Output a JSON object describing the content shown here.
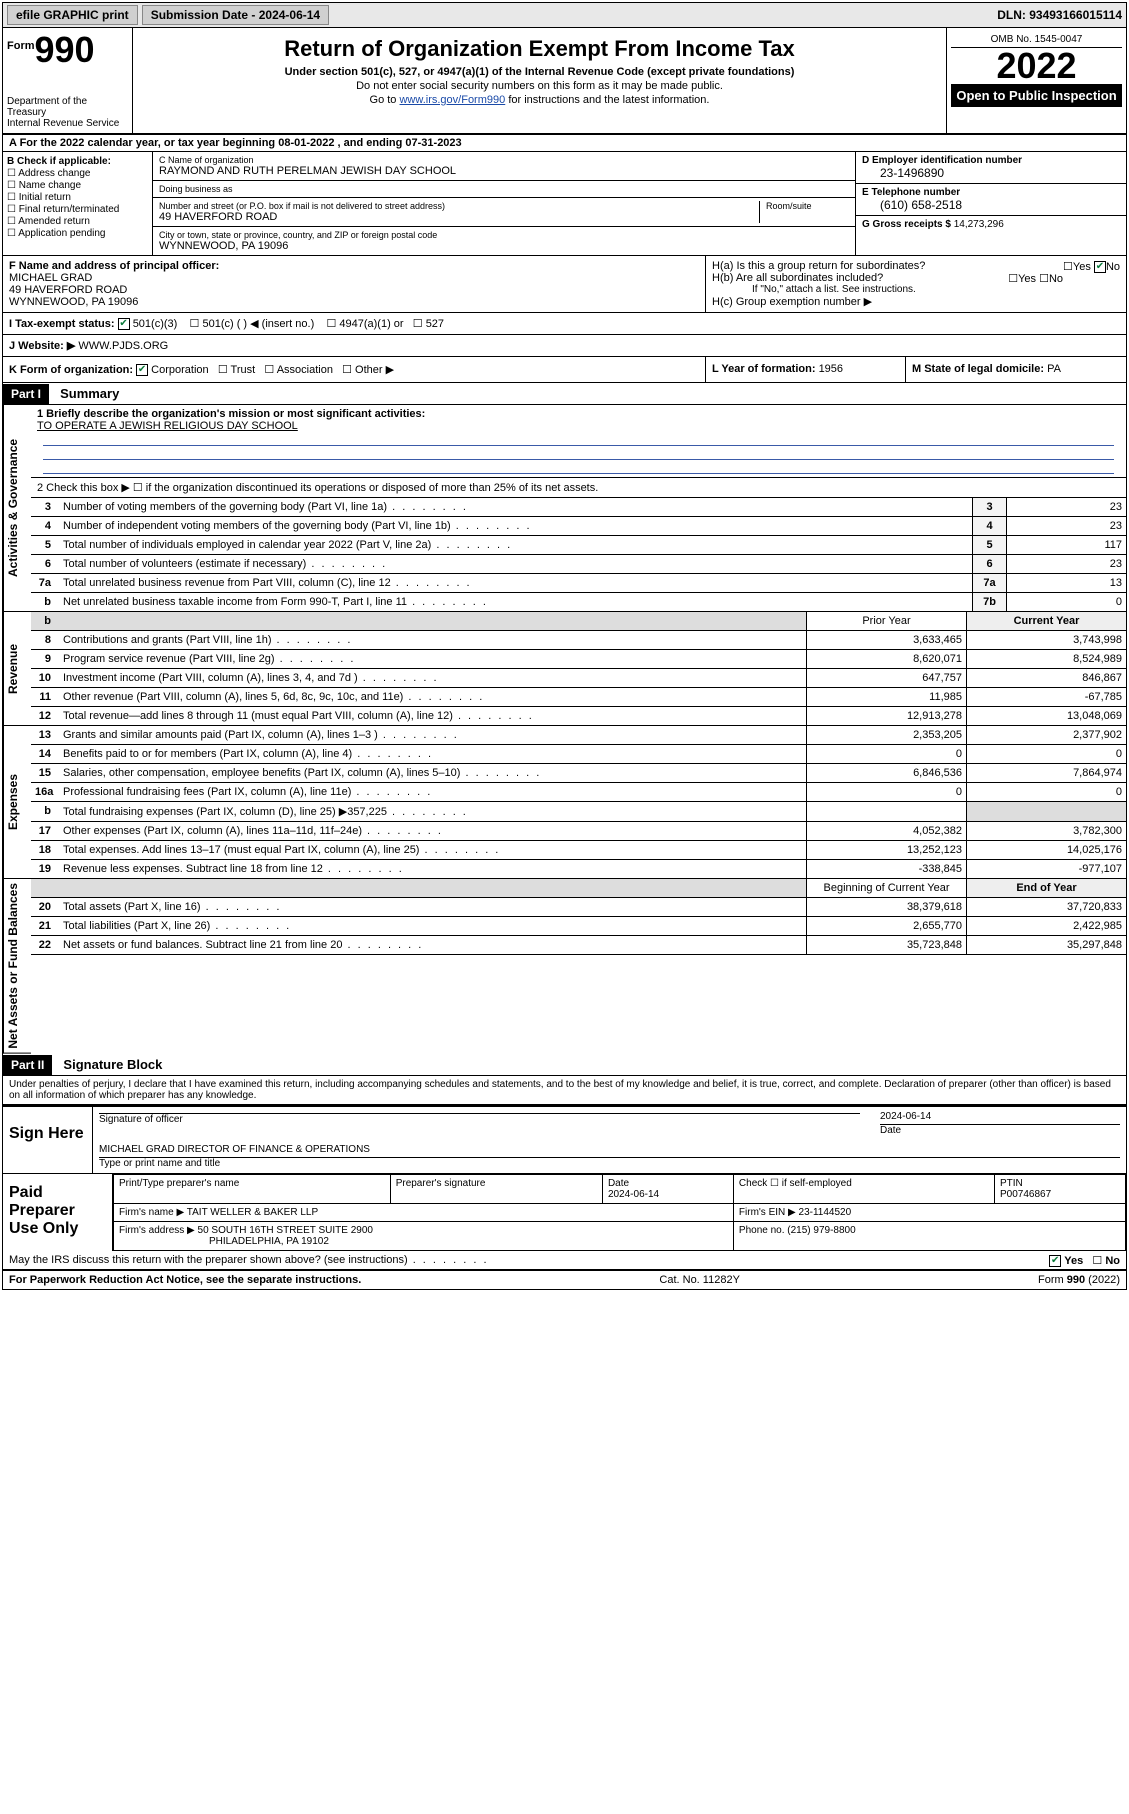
{
  "topbar": {
    "efile": "efile GRAPHIC print",
    "subdate_label": "Submission Date - ",
    "subdate": "2024-06-14",
    "dln_label": "DLN: ",
    "dln": "93493166015114"
  },
  "header": {
    "form_prefix": "Form",
    "form_no": "990",
    "title": "Return of Organization Exempt From Income Tax",
    "subtitle": "Under section 501(c), 527, or 4947(a)(1) of the Internal Revenue Code (except private foundations)",
    "note1": "Do not enter social security numbers on this form as it may be made public.",
    "note2_a": "Go to ",
    "note2_link": "www.irs.gov/Form990",
    "note2_b": " for instructions and the latest information.",
    "dept1": "Department of the Treasury",
    "dept2": "Internal Revenue Service",
    "omb": "OMB No. 1545-0047",
    "year": "2022",
    "open": "Open to Public Inspection"
  },
  "A": {
    "label_a": "A For the 2022 calendar year, or tax year beginning ",
    "begin": "08-01-2022",
    "label_b": " , and ending ",
    "end": "07-31-2023"
  },
  "B": {
    "label": "B Check if applicable:",
    "items": [
      "Address change",
      "Name change",
      "Initial return",
      "Final return/terminated",
      "Amended return",
      "Application pending"
    ]
  },
  "C": {
    "name_lbl": "C Name of organization",
    "name": "RAYMOND AND RUTH PERELMAN JEWISH DAY SCHOOL",
    "dba_lbl": "Doing business as",
    "dba": "",
    "street_lbl": "Number and street (or P.O. box if mail is not delivered to street address)",
    "room_lbl": "Room/suite",
    "street": "49 HAVERFORD ROAD",
    "city_lbl": "City or town, state or province, country, and ZIP or foreign postal code",
    "city": "WYNNEWOOD, PA  19096"
  },
  "D": {
    "lbl": "D Employer identification number",
    "val": "23-1496890"
  },
  "E": {
    "lbl": "E Telephone number",
    "val": "(610) 658-2518"
  },
  "G": {
    "lbl": "G Gross receipts $ ",
    "val": "14,273,296"
  },
  "F": {
    "lbl": "F  Name and address of principal officer:",
    "name": "MICHAEL GRAD",
    "street": "49 HAVERFORD ROAD",
    "city": "WYNNEWOOD, PA  19096"
  },
  "H": {
    "a": "H(a)  Is this a group return for subordinates?",
    "b": "H(b)  Are all subordinates included?",
    "note": "If \"No,\" attach a list. See instructions.",
    "c": "H(c)  Group exemption number ▶",
    "yes": "Yes",
    "no": "No"
  },
  "I": {
    "lbl": "I   Tax-exempt status:",
    "c3": "501(c)(3)",
    "c": "501(c) (  ) ◀ (insert no.)",
    "a1": "4947(a)(1) or",
    "s527": "527"
  },
  "J": {
    "lbl": "J   Website: ▶ ",
    "val": "WWW.PJDS.ORG"
  },
  "K": {
    "lbl": "K Form of organization:",
    "corp": "Corporation",
    "trust": "Trust",
    "assoc": "Association",
    "other": "Other ▶"
  },
  "L": {
    "lbl": "L Year of formation: ",
    "val": "1956"
  },
  "M": {
    "lbl": "M State of legal domicile: ",
    "val": "PA"
  },
  "part1": {
    "badge": "Part I",
    "title": "Summary"
  },
  "gov": {
    "q1": "1   Briefly describe the organization's mission or most significant activities:",
    "q1v": "TO OPERATE A JEWISH RELIGIOUS DAY SCHOOL",
    "q2": "2   Check this box ▶ ☐  if the organization discontinued its operations or disposed of more than 25% of its net assets.",
    "lines": [
      {
        "n": "3",
        "t": "Number of voting members of the governing body (Part VI, line 1a)",
        "b": "3",
        "v": "23"
      },
      {
        "n": "4",
        "t": "Number of independent voting members of the governing body (Part VI, line 1b)",
        "b": "4",
        "v": "23"
      },
      {
        "n": "5",
        "t": "Total number of individuals employed in calendar year 2022 (Part V, line 2a)",
        "b": "5",
        "v": "117"
      },
      {
        "n": "6",
        "t": "Total number of volunteers (estimate if necessary)",
        "b": "6",
        "v": "23"
      },
      {
        "n": "7a",
        "t": "Total unrelated business revenue from Part VIII, column (C), line 12",
        "b": "7a",
        "v": "13"
      },
      {
        "n": "b",
        "t": "Net unrelated business taxable income from Form 990-T, Part I, line 11",
        "b": "7b",
        "v": "0"
      }
    ]
  },
  "rev": {
    "hdr_prior": "Prior Year",
    "hdr_curr": "Current Year",
    "lines": [
      {
        "n": "8",
        "t": "Contributions and grants (Part VIII, line 1h)",
        "p": "3,633,465",
        "c": "3,743,998"
      },
      {
        "n": "9",
        "t": "Program service revenue (Part VIII, line 2g)",
        "p": "8,620,071",
        "c": "8,524,989"
      },
      {
        "n": "10",
        "t": "Investment income (Part VIII, column (A), lines 3, 4, and 7d )",
        "p": "647,757",
        "c": "846,867"
      },
      {
        "n": "11",
        "t": "Other revenue (Part VIII, column (A), lines 5, 6d, 8c, 9c, 10c, and 11e)",
        "p": "11,985",
        "c": "-67,785"
      },
      {
        "n": "12",
        "t": "Total revenue—add lines 8 through 11 (must equal Part VIII, column (A), line 12)",
        "p": "12,913,278",
        "c": "13,048,069"
      }
    ]
  },
  "exp": {
    "lines": [
      {
        "n": "13",
        "t": "Grants and similar amounts paid (Part IX, column (A), lines 1–3 )",
        "p": "2,353,205",
        "c": "2,377,902"
      },
      {
        "n": "14",
        "t": "Benefits paid to or for members (Part IX, column (A), line 4)",
        "p": "0",
        "c": "0"
      },
      {
        "n": "15",
        "t": "Salaries, other compensation, employee benefits (Part IX, column (A), lines 5–10)",
        "p": "6,846,536",
        "c": "7,864,974"
      },
      {
        "n": "16a",
        "t": "Professional fundraising fees (Part IX, column (A), line 11e)",
        "p": "0",
        "c": "0"
      },
      {
        "n": "b",
        "t": "Total fundraising expenses (Part IX, column (D), line 25) ▶357,225",
        "p": "",
        "c": ""
      },
      {
        "n": "17",
        "t": "Other expenses (Part IX, column (A), lines 11a–11d, 11f–24e)",
        "p": "4,052,382",
        "c": "3,782,300"
      },
      {
        "n": "18",
        "t": "Total expenses. Add lines 13–17 (must equal Part IX, column (A), line 25)",
        "p": "13,252,123",
        "c": "14,025,176"
      },
      {
        "n": "19",
        "t": "Revenue less expenses. Subtract line 18 from line 12",
        "p": "-338,845",
        "c": "-977,107"
      }
    ]
  },
  "net": {
    "hdr_prior": "Beginning of Current Year",
    "hdr_curr": "End of Year",
    "lines": [
      {
        "n": "20",
        "t": "Total assets (Part X, line 16)",
        "p": "38,379,618",
        "c": "37,720,833"
      },
      {
        "n": "21",
        "t": "Total liabilities (Part X, line 26)",
        "p": "2,655,770",
        "c": "2,422,985"
      },
      {
        "n": "22",
        "t": "Net assets or fund balances. Subtract line 21 from line 20",
        "p": "35,723,848",
        "c": "35,297,848"
      }
    ]
  },
  "part2": {
    "badge": "Part II",
    "title": "Signature Block"
  },
  "decl": "Under penalties of perjury, I declare that I have examined this return, including accompanying schedules and statements, and to the best of my knowledge and belief, it is true, correct, and complete. Declaration of preparer (other than officer) is based on all information of which preparer has any knowledge.",
  "sign": {
    "here": "Sign Here",
    "officer_lbl": "Signature of officer",
    "date_lbl": "Date",
    "date": "2024-06-14",
    "name": "MICHAEL GRAD  DIRECTOR OF FINANCE & OPERATIONS",
    "name_lbl": "Type or print name and title"
  },
  "paid": {
    "lbl": "Paid Preparer Use Only",
    "h_name": "Print/Type preparer's name",
    "h_sig": "Preparer's signature",
    "h_date": "Date",
    "date": "2024-06-14",
    "self": "Check ☐ if self-employed",
    "ptin_lbl": "PTIN",
    "ptin": "P00746867",
    "firm_name_lbl": "Firm's name   ▶ ",
    "firm_name": "TAIT WELLER & BAKER LLP",
    "firm_ein_lbl": "Firm's EIN ▶ ",
    "firm_ein": "23-1144520",
    "firm_addr_lbl": "Firm's address ▶ ",
    "firm_addr1": "50 SOUTH 16TH STREET SUITE 2900",
    "firm_addr2": "PHILADELPHIA, PA  19102",
    "phone_lbl": "Phone no. ",
    "phone": "(215) 979-8800"
  },
  "discuss": {
    "q": "May the IRS discuss this return with the preparer shown above? (see instructions)",
    "yes": "Yes",
    "no": "No"
  },
  "footer": {
    "left": "For Paperwork Reduction Act Notice, see the separate instructions.",
    "mid": "Cat. No. 11282Y",
    "right": "Form 990 (2022)"
  },
  "tabs": {
    "gov": "Activities & Governance",
    "rev": "Revenue",
    "exp": "Expenses",
    "net": "Net Assets or Fund Balances"
  }
}
